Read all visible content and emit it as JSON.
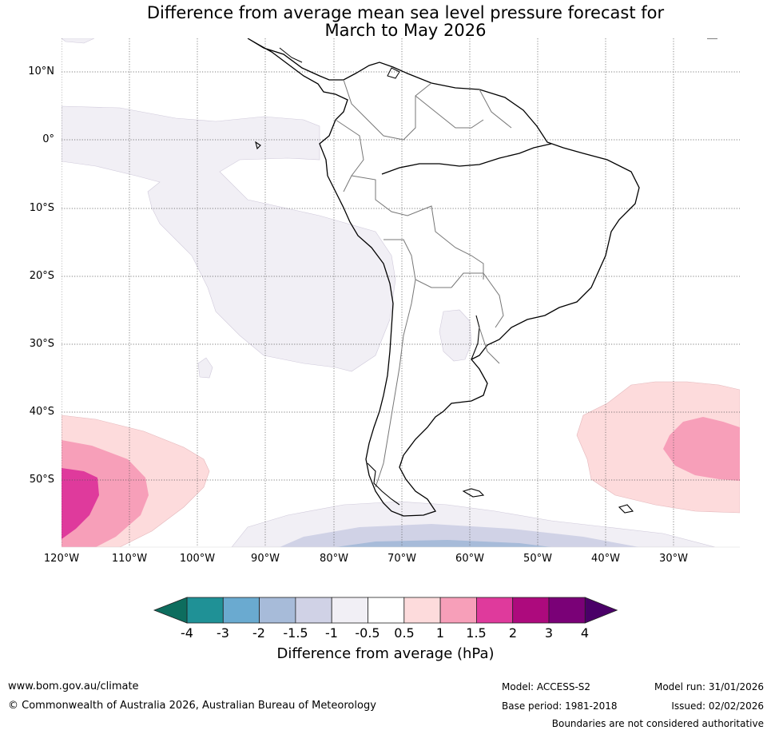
{
  "title": {
    "line1": "Difference from average mean sea level pressure forecast for",
    "line2": "March to May 2026"
  },
  "map": {
    "lat_labels": [
      "10°N",
      "0°",
      "10°S",
      "20°S",
      "30°S",
      "40°S",
      "50°S"
    ],
    "lon_labels": [
      "120°W",
      "110°W",
      "100°W",
      "90°W",
      "80°W",
      "70°W",
      "60°W",
      "50°W",
      "40°W",
      "30°W"
    ]
  },
  "colorbar": {
    "ticks": [
      "-4",
      "-3",
      "-2",
      "-1.5",
      "-1",
      "-0.5",
      "0.5",
      "1",
      "1.5",
      "2",
      "3",
      "4"
    ],
    "colors": [
      "#1f9196",
      "#6aaad0",
      "#a7bbd9",
      "#d0d2e6",
      "#f1eff5",
      "#ffffff",
      "#fddbdc",
      "#f79fb9",
      "#df3a9c",
      "#ad0a7d",
      "#7a0177"
    ],
    "under_color": "#0d6d5e",
    "over_color": "#4a0068",
    "label": "Difference from average (hPa)"
  },
  "footer": {
    "url": "www.bom.gov.au/climate",
    "copyright": "© Commonwealth of Australia 2026, Australian Bureau of Meteorology",
    "model": "Model: ACCESS-S2",
    "base_period": "Base period: 1981-2018",
    "model_run": "Model run: 31/01/2026",
    "issued": "Issued: 02/02/2026",
    "boundaries_note": "Boundaries are not considered authoritative"
  }
}
